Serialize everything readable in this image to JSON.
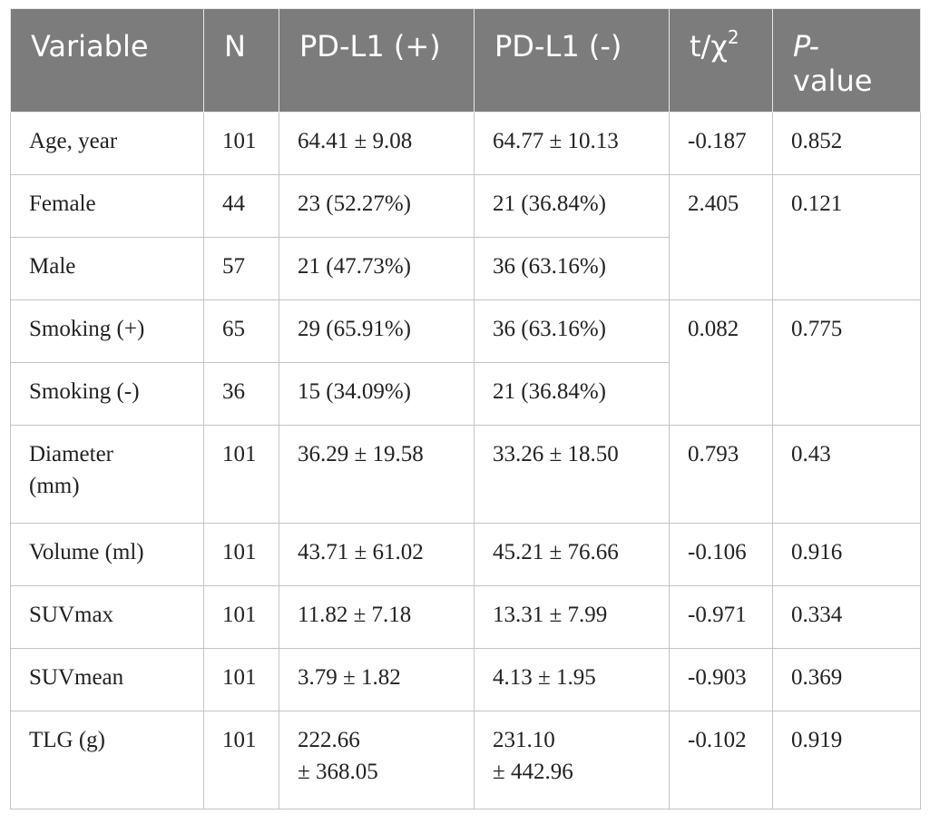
{
  "table": {
    "headers": {
      "variable": "Variable",
      "n": "N",
      "pd_pos": "PD-L1 (+)",
      "pd_neg": "PD-L1 (-)",
      "stat_prefix": "t/χ",
      "stat_exp": "2",
      "pvalue_italic": "P-",
      "pvalue_rest": "value"
    },
    "rows": [
      {
        "variable": "Age, year",
        "n": "101",
        "pos": "64.41 ± 9.08",
        "neg": "64.77 ± 10.13",
        "stat": "-0.187",
        "p": "0.852"
      },
      {
        "variable": "Female",
        "n": "44",
        "pos": "23 (52.27%)",
        "neg": "21 (36.84%)",
        "stat": "2.405",
        "p": "0.121"
      },
      {
        "variable": "Male",
        "n": "57",
        "pos": "21 (47.73%)",
        "neg": "36 (63.16%)"
      },
      {
        "variable": "Smoking (+)",
        "n": "65",
        "pos": "29 (65.91%)",
        "neg": "36 (63.16%)",
        "stat": "0.082",
        "p": "0.775"
      },
      {
        "variable": "Smoking (-)",
        "n": "36",
        "pos": "15 (34.09%)",
        "neg": "21 (36.84%)"
      },
      {
        "variable_line1": "Diameter",
        "variable_line2": "(mm)",
        "n": "101",
        "pos": "36.29 ± 19.58",
        "neg": "33.26 ± 18.50",
        "stat": "0.793",
        "p": "0.43"
      },
      {
        "variable": "Volume (ml)",
        "n": "101",
        "pos": "43.71 ± 61.02",
        "neg": "45.21 ± 76.66",
        "stat": "-0.106",
        "p": "0.916"
      },
      {
        "variable": "SUVmax",
        "n": "101",
        "pos": "11.82 ± 7.18",
        "neg": "13.31 ± 7.99",
        "stat": "-0.971",
        "p": "0.334"
      },
      {
        "variable": "SUVmean",
        "n": "101",
        "pos": "3.79 ± 1.82",
        "neg": "4.13 ± 1.95",
        "stat": "-0.903",
        "p": "0.369"
      },
      {
        "variable": "TLG (g)",
        "n": "101",
        "pos_line1": "222.66",
        "pos_line2": "± 368.05",
        "neg_line1": "231.10",
        "neg_line2": "± 442.96",
        "stat": "-0.102",
        "p": "0.919"
      }
    ]
  }
}
